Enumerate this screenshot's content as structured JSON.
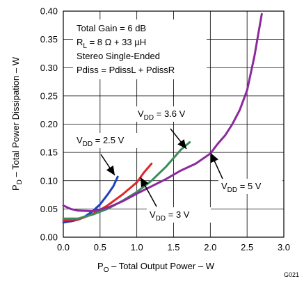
{
  "chart_data": {
    "type": "line",
    "xlabel": {
      "main": "P",
      "sub": "O",
      "rest": " – Total Output Power – W"
    },
    "ylabel": {
      "main": "P",
      "sub": "D",
      "rest": " – Total Power Dissipation – W"
    },
    "xlim": [
      0,
      3
    ],
    "ylim": [
      0,
      0.4
    ],
    "xticks": [
      "0.0",
      "0.5",
      "1.0",
      "1.5",
      "2.0",
      "2.5",
      "3.0"
    ],
    "yticks": [
      "0.00",
      "0.05",
      "0.10",
      "0.15",
      "0.20",
      "0.25",
      "0.30",
      "0.35",
      "0.40"
    ],
    "grid": true,
    "figure_id": "G021",
    "conditions": {
      "line1": "Total Gain = 6 dB",
      "line2": {
        "pre": "R",
        "sub": "L",
        "post": " = 8 Ω + 33 µH"
      },
      "line3": "Stereo Single-Ended",
      "line4": "Pdiss = PdissL + PdissR"
    },
    "series": [
      {
        "label": {
          "pre": "V",
          "sub": "DD",
          "post": " = 2.5 V"
        },
        "color": "#1f3fbf",
        "points": [
          [
            0,
            0.026
          ],
          [
            0.1,
            0.028
          ],
          [
            0.2,
            0.031
          ],
          [
            0.3,
            0.037
          ],
          [
            0.4,
            0.046
          ],
          [
            0.5,
            0.058
          ],
          [
            0.6,
            0.075
          ],
          [
            0.68,
            0.09
          ],
          [
            0.74,
            0.107
          ]
        ]
      },
      {
        "label": {
          "pre": "V",
          "sub": "DD",
          "post": " = 3 V"
        },
        "color": "#e1232c",
        "points": [
          [
            0,
            0.03
          ],
          [
            0.2,
            0.031
          ],
          [
            0.4,
            0.041
          ],
          [
            0.6,
            0.056
          ],
          [
            0.8,
            0.075
          ],
          [
            0.9,
            0.086
          ],
          [
            1.0,
            0.097
          ],
          [
            1.1,
            0.115
          ],
          [
            1.2,
            0.13
          ]
        ]
      },
      {
        "label": {
          "pre": "V",
          "sub": "DD",
          "post": " = 3.6 V"
        },
        "color": "#3d8c5a",
        "points": [
          [
            0,
            0.033
          ],
          [
            0.2,
            0.033
          ],
          [
            0.4,
            0.04
          ],
          [
            0.6,
            0.05
          ],
          [
            0.8,
            0.064
          ],
          [
            1.0,
            0.08
          ],
          [
            1.2,
            0.1
          ],
          [
            1.4,
            0.125
          ],
          [
            1.6,
            0.155
          ],
          [
            1.72,
            0.168
          ]
        ]
      },
      {
        "label": {
          "pre": "V",
          "sub": "DD",
          "post": " = 5 V"
        },
        "color": "#8b2a9e",
        "points": [
          [
            0,
            0.056
          ],
          [
            0.1,
            0.05
          ],
          [
            0.2,
            0.047
          ],
          [
            0.4,
            0.046
          ],
          [
            0.6,
            0.052
          ],
          [
            0.8,
            0.063
          ],
          [
            1.0,
            0.077
          ],
          [
            1.2,
            0.09
          ],
          [
            1.4,
            0.103
          ],
          [
            1.6,
            0.118
          ],
          [
            1.8,
            0.13
          ],
          [
            2.0,
            0.148
          ],
          [
            2.1,
            0.165
          ],
          [
            2.2,
            0.18
          ],
          [
            2.3,
            0.2
          ],
          [
            2.4,
            0.225
          ],
          [
            2.5,
            0.26
          ],
          [
            2.6,
            0.32
          ],
          [
            2.68,
            0.38
          ],
          [
            2.7,
            0.395
          ]
        ]
      }
    ]
  }
}
